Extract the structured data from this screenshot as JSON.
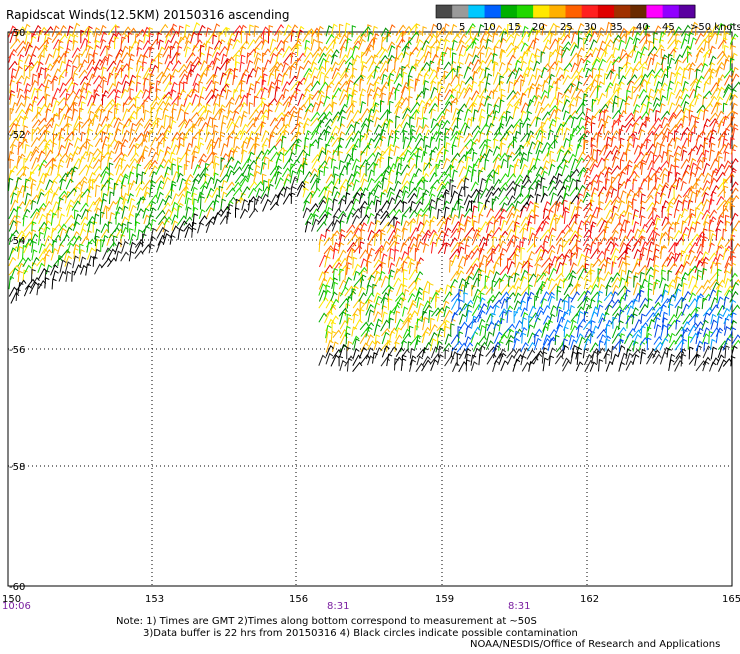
{
  "title": "Rapidscat Winds(12.5KM) 20150316 ascending",
  "legend": {
    "ticks": [
      "0",
      "5",
      "10",
      "15",
      "20",
      "25",
      "30",
      "35",
      "40",
      "45",
      ">50 knots"
    ],
    "colors": [
      "#4a4a4a",
      "#9a9a9a",
      "#00c8ff",
      "#0060ff",
      "#00b000",
      "#20d800",
      "#ffe800",
      "#ffb000",
      "#ff6000",
      "#ff2020",
      "#e00000",
      "#a03000",
      "#6a2a00",
      "#ff00ff",
      "#9000ff",
      "#5a00a0"
    ]
  },
  "lat_labels": [
    "-50",
    "-52",
    "-54",
    "-56",
    "-58",
    "-60"
  ],
  "lon_labels": [
    "150",
    "153",
    "156",
    "159",
    "162",
    "165"
  ],
  "time_labels": [
    "10:06",
    "8:31",
    "8:31"
  ],
  "notes": [
    "Note: 1) Times are GMT 2)Times along bottom correspond to measurement at ~50S",
    "3)Data buffer is 22 hrs from 20150316 4) Black circles indicate possible contamination",
    "NOAA/NESDIS/Office of Research and Applications"
  ]
}
